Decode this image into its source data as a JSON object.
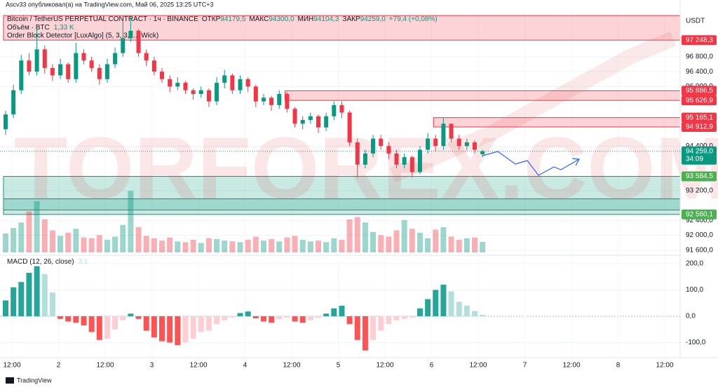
{
  "chart_data": {
    "type": "candlestick",
    "publisher_line": "Ascv33 опубликовал(а) на TradingView.com, Май 06, 2025 13:25 UTC+3",
    "symbol": "Bitcoin / TetherUS PERPETUAL CONTRACT · 1ч · BINANCE",
    "ohlc": [
      {
        "label": "ОТКР",
        "value": "94179,5"
      },
      {
        "label": "МАКС",
        "value": "94300,0"
      },
      {
        "label": "МИН",
        "value": "94104,3"
      },
      {
        "label": "ЗАКР",
        "value": "94259,0"
      }
    ],
    "change": "+79,4 (+0,08%)",
    "volume_title": "Объём · BTC",
    "volume_label": "1,33 K",
    "indicator_title": "Order Block Detector [LuxAlgo] (5, 3, 3, ..., Wick)",
    "macd_title": "MACD (12, 26, close)",
    "macd_label": "3,1",
    "currency": "USDT",
    "countdown": "34:09",
    "watermark": "TORFOREX.COM",
    "footer": "TradingView",
    "time_labels": [
      "12:00",
      "2",
      "12:00",
      "3",
      "12:00",
      "4",
      "12:00",
      "5",
      "12:00",
      "6",
      "12:00",
      "7",
      "12:00",
      "8",
      "12:00"
    ],
    "open": [
      94850,
      95250,
      95900,
      96700,
      96400,
      97000,
      96500,
      96300,
      96600,
      96200,
      96900,
      96700,
      96500,
      96200,
      96600,
      96900,
      97300,
      97500,
      96900,
      96700,
      96400,
      96200,
      96000,
      96100,
      95900,
      95800,
      95900,
      95600,
      96100,
      96300,
      95900,
      96200,
      96000,
      95600,
      95700,
      95500,
      95800,
      95400,
      95000,
      95100,
      95200,
      94900,
      95200,
      95500,
      95300,
      94500,
      93900,
      94200,
      94600,
      94400,
      94200,
      93900,
      94100,
      93700,
      94300,
      94600,
      94400,
      95000,
      94600,
      94400,
      94500,
      94179.5
    ],
    "high": [
      95350,
      96050,
      96850,
      96900,
      97560,
      97100,
      96600,
      96750,
      96650,
      97180,
      97000,
      96800,
      96600,
      96750,
      97050,
      97750,
      97900,
      97550,
      97000,
      96800,
      96500,
      96300,
      96250,
      96150,
      95950,
      96000,
      95950,
      96250,
      96450,
      96350,
      96300,
      96250,
      96050,
      95800,
      95750,
      95900,
      95850,
      95450,
      95200,
      95300,
      95250,
      95300,
      95600,
      95600,
      95350,
      94600,
      94300,
      94700,
      94700,
      94500,
      94300,
      94200,
      94150,
      94400,
      94750,
      94700,
      95150,
      95000,
      94700,
      94600,
      94550,
      94300
    ],
    "low": [
      94700,
      95150,
      95800,
      96300,
      96300,
      96350,
      96150,
      96200,
      96100,
      96100,
      96600,
      96400,
      96050,
      96100,
      96500,
      96800,
      97200,
      96800,
      96550,
      96300,
      96100,
      95850,
      95900,
      95800,
      95650,
      95700,
      95450,
      95500,
      95950,
      95800,
      95800,
      95850,
      95450,
      95500,
      95350,
      95400,
      95300,
      94900,
      94850,
      95000,
      94750,
      94800,
      95100,
      95150,
      94400,
      93550,
      93800,
      94100,
      94300,
      94050,
      93800,
      93800,
      93550,
      93650,
      94200,
      94250,
      94300,
      94500,
      94300,
      94300,
      94200,
      94104.3
    ],
    "close": [
      95250,
      95900,
      96700,
      96400,
      97000,
      96500,
      96300,
      96600,
      96200,
      96900,
      96700,
      96500,
      96200,
      96600,
      96900,
      97300,
      97500,
      96900,
      96700,
      96400,
      96200,
      96000,
      96100,
      95900,
      95800,
      95900,
      95600,
      96100,
      96300,
      95900,
      96200,
      96000,
      95600,
      95700,
      95500,
      95800,
      95400,
      95000,
      95100,
      95200,
      94900,
      95200,
      95500,
      95300,
      94500,
      93900,
      94200,
      94600,
      94400,
      94200,
      93900,
      94100,
      93700,
      94300,
      94600,
      94400,
      95000,
      94600,
      94400,
      94500,
      94300,
      94259
    ],
    "volume": [
      2.4,
      3.1,
      3.8,
      5.2,
      6.5,
      4.2,
      2.8,
      2.1,
      2.5,
      3.0,
      1.9,
      1.8,
      2.2,
      1.6,
      2.0,
      3.5,
      7.8,
      3.2,
      2.1,
      1.8,
      1.5,
      1.9,
      1.4,
      1.3,
      1.6,
      1.2,
      1.8,
      1.7,
      1.5,
      1.4,
      1.3,
      1.6,
      2.0,
      1.5,
      1.7,
      1.4,
      1.9,
      2.1,
      1.6,
      1.4,
      1.5,
      1.3,
      1.8,
      1.6,
      4.2,
      4.5,
      3.8,
      2.6,
      2.2,
      2.0,
      2.8,
      4.1,
      3.0,
      2.5,
      1.8,
      2.9,
      3.2,
      2.0,
      1.6,
      1.8,
      1.9,
      1.33
    ],
    "macd_hist": [
      60,
      110,
      130,
      165,
      190,
      160,
      90,
      -10,
      -20,
      -25,
      -35,
      -60,
      -90,
      -85,
      -50,
      -15,
      10,
      -10,
      -55,
      -80,
      -95,
      -100,
      -110,
      -100,
      -85,
      -60,
      -55,
      -30,
      -15,
      -5,
      12,
      18,
      -8,
      -20,
      -25,
      -12,
      -5,
      -20,
      -25,
      -15,
      -5,
      10,
      30,
      40,
      -30,
      -90,
      -130,
      -90,
      -55,
      -30,
      -15,
      -10,
      -5,
      30,
      65,
      100,
      120,
      95,
      55,
      40,
      20,
      5
    ],
    "ylim": [
      91500,
      97950
    ],
    "yticks": [
      {
        "value": 96800,
        "label": "96 800,0"
      },
      {
        "value": 96400,
        "label": "96 400,0"
      },
      {
        "value": 96000,
        "label": "96 000,0"
      },
      {
        "value": 94400,
        "label": "94 400,0"
      },
      {
        "value": 93200,
        "label": "93 200,0"
      },
      {
        "value": 92400,
        "label": "92 400,0"
      },
      {
        "value": 92000,
        "label": "92 000,0"
      },
      {
        "value": 91600,
        "label": "91 600,0"
      }
    ],
    "volume_ylim": [
      0,
      16
    ],
    "macd_ylim": [
      -144,
      221
    ],
    "macd_ticks": [
      {
        "value": 200,
        "label": "200,0"
      },
      {
        "value": 100,
        "label": "100,0"
      },
      {
        "value": 0,
        "label": "0,0"
      },
      {
        "value": -100,
        "label": "-100,0"
      }
    ],
    "zones": [
      {
        "top": 97910,
        "bottom": 97248.3,
        "start": 0,
        "color": "#f23645"
      },
      {
        "top": 95886.5,
        "bottom": 95626.9,
        "start": 36,
        "color": "#f23645"
      },
      {
        "top": 95165.1,
        "bottom": 94912.9,
        "start": 55,
        "color": "#f23645"
      },
      {
        "top": 93584.5,
        "bottom": 92560.1,
        "start": 0,
        "color": "#089981"
      },
      {
        "top": 92980,
        "bottom": 92680,
        "start": 0,
        "color": "#089981"
      }
    ],
    "price_labels": [
      {
        "value": 97248.3,
        "label": "97 248,3",
        "color": "#f23645"
      },
      {
        "value": 95886.5,
        "label": "95 886,5",
        "color": "#f23645"
      },
      {
        "value": 95626.9,
        "label": "95 626,9",
        "color": "#f23645"
      },
      {
        "value": 95165.1,
        "label": "95 165,1",
        "color": "#f23645"
      },
      {
        "value": 94912.9,
        "label": "94 912,9",
        "color": "#f23645"
      },
      {
        "value": 94259.0,
        "label": "94 259,0",
        "color": "#089981"
      },
      {
        "value": 93584.5,
        "label": "93 584,5",
        "color": "#4caf50"
      },
      {
        "value": 92560.1,
        "label": "92 560,1",
        "color": "#4caf50"
      }
    ],
    "colors": {
      "up": "#089981",
      "down": "#f23645",
      "hist_up_rise": "#26a69a",
      "hist_up_fall": "#b2dfdb",
      "hist_down_fall": "#ff5252",
      "hist_down_rise": "#ffcdd2"
    },
    "grid": true
  }
}
